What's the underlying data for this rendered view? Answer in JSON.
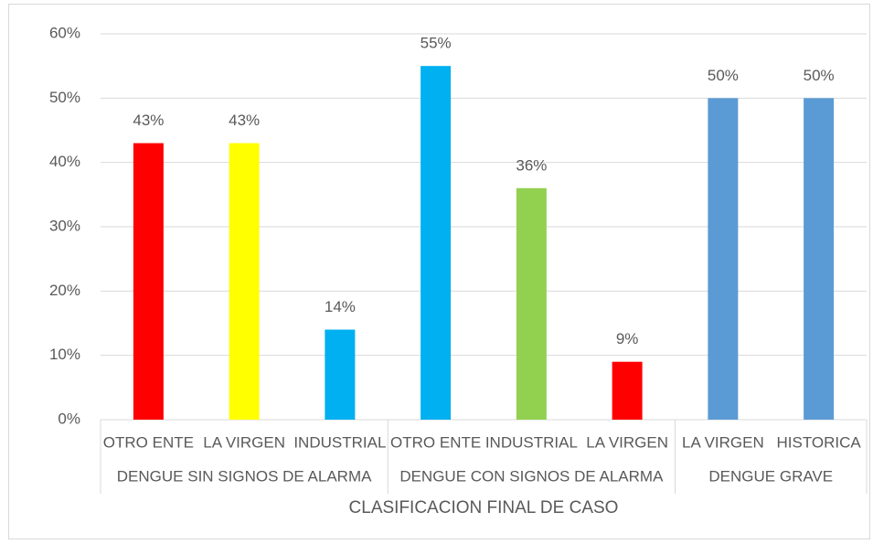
{
  "chart_data": {
    "type": "bar",
    "x_label": "CLASIFICACION FINAL DE CASO",
    "groups": [
      {
        "name": "DENGUE SIN SIGNOS DE ALARMA",
        "categories": [
          "OTRO ENTE",
          "LA VIRGEN",
          "INDUSTRIAL"
        ],
        "values": [
          43,
          43,
          14
        ],
        "value_labels": [
          "43%",
          "43%",
          "14%"
        ],
        "colors": [
          "#ff0000",
          "#ffff00",
          "#00b0f0"
        ]
      },
      {
        "name": "DENGUE CON SIGNOS DE ALARMA",
        "categories": [
          "OTRO ENTE",
          "INDUSTRIAL",
          "LA VIRGEN"
        ],
        "values": [
          55,
          36,
          9
        ],
        "value_labels": [
          "55%",
          "36%",
          "9%"
        ],
        "colors": [
          "#00b0f0",
          "#92d050",
          "#ff0000"
        ]
      },
      {
        "name": "DENGUE GRAVE",
        "categories": [
          "LA VIRGEN",
          "HISTORICA"
        ],
        "values": [
          50,
          50
        ],
        "value_labels": [
          "50%",
          "50%"
        ],
        "colors": [
          "#5b9bd5",
          "#5b9bd5"
        ]
      }
    ],
    "ylim": [
      0,
      60
    ],
    "yticks": [
      {
        "value": 0,
        "label": "0%"
      },
      {
        "value": 10,
        "label": "10%"
      },
      {
        "value": 20,
        "label": "20%"
      },
      {
        "value": 30,
        "label": "30%"
      },
      {
        "value": 40,
        "label": "40%"
      },
      {
        "value": 50,
        "label": "50%"
      },
      {
        "value": 60,
        "label": "60%"
      }
    ],
    "grid": true
  }
}
